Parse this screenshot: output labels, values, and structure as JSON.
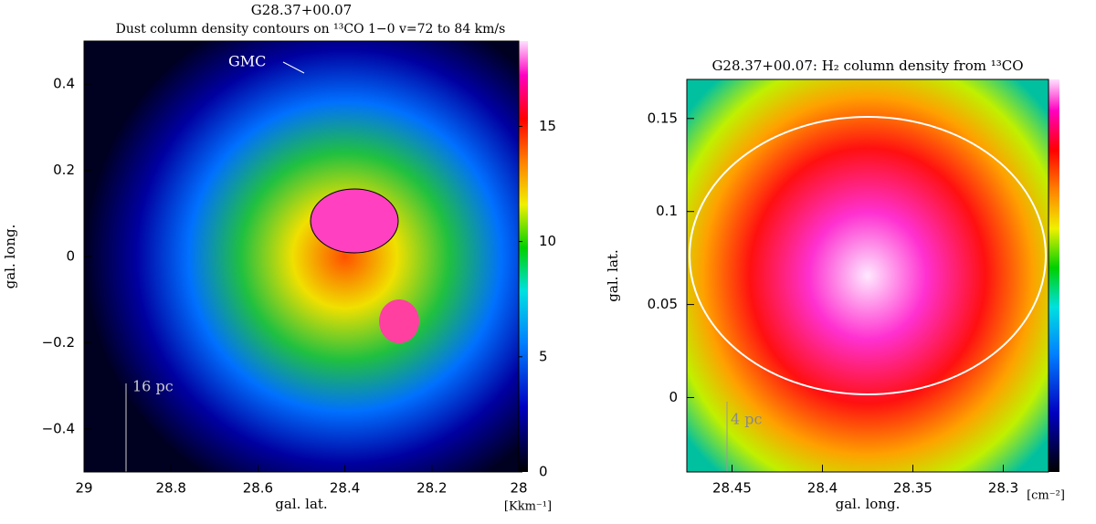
{
  "chart_data": [
    {
      "type": "image",
      "title": "G28.37+00.07",
      "subtitle": "Dust column density contours on ¹³CO 1−0 v=72 to 84 km/s",
      "x_label": "gal. lat.",
      "y_label": "gal. long.",
      "colorbar_label": "[Kkm⁻¹]",
      "xlim": [
        29,
        28
      ],
      "xticks": [
        29,
        28.8,
        28.6,
        28.4,
        28.2,
        28
      ],
      "ylim": [
        -0.5,
        0.5
      ],
      "yticks": [
        {
          "value": -0.4,
          "label": "−0.4"
        },
        {
          "value": -0.2,
          "label": "−0.2"
        },
        0,
        0.2,
        0.4
      ],
      "clim": [
        0,
        18.7
      ],
      "cticks": [
        0,
        5,
        10,
        15
      ],
      "annotations": [
        "GMC",
        "16 pc"
      ]
    },
    {
      "type": "image",
      "title": "G28.37+00.07: H₂ column density from ¹³CO",
      "x_label": "gal. long.",
      "y_label": "gal. lat.",
      "colorbar_label": "[cm⁻²]",
      "xlim": [
        28.475,
        28.275
      ],
      "xticks": [
        28.45,
        28.4,
        28.35,
        28.3
      ],
      "ylim": [
        -0.04,
        0.171
      ],
      "yticks": [
        0,
        0.05,
        0.1,
        0.15
      ],
      "annotations": [
        "4 pc"
      ]
    }
  ]
}
